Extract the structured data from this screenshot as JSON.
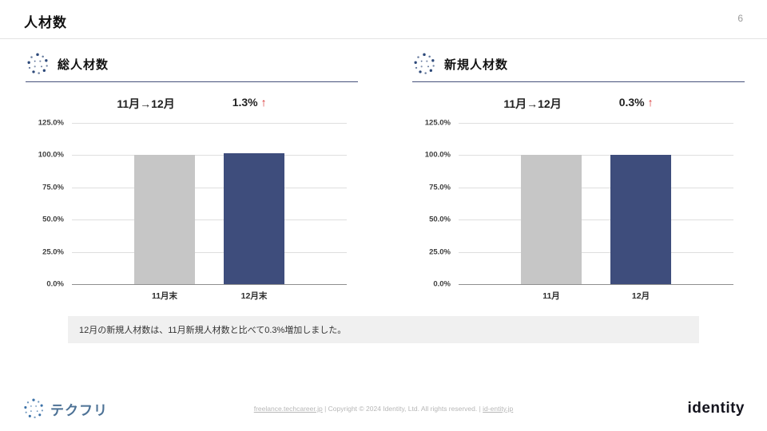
{
  "header": {
    "title": "人材数",
    "page_number": "6"
  },
  "panels": [
    {
      "title": "総人材数",
      "period": "11月→12月",
      "change": "1.3%",
      "arrow": "↑"
    },
    {
      "title": "新規人材数",
      "period": "11月→12月",
      "change": "0.3%",
      "arrow": "↑"
    }
  ],
  "chart_data": [
    {
      "type": "bar",
      "title": "総人材数",
      "categories": [
        "11月末",
        "12月末"
      ],
      "values": [
        100.0,
        101.3
      ],
      "ylim": [
        0,
        125
      ],
      "yticks": [
        "125.0%",
        "100.0%",
        "75.0%",
        "50.0%",
        "25.0%",
        "0.0%"
      ],
      "colors": [
        "#c6c6c6",
        "#3e4d7c"
      ],
      "grid": true,
      "legend": "none"
    },
    {
      "type": "bar",
      "title": "新規人材数",
      "categories": [
        "11月",
        "12月"
      ],
      "values": [
        100.0,
        100.3
      ],
      "ylim": [
        0,
        125
      ],
      "yticks": [
        "125.0%",
        "100.0%",
        "75.0%",
        "50.0%",
        "25.0%",
        "0.0%"
      ],
      "colors": [
        "#c6c6c6",
        "#3e4d7c"
      ],
      "grid": true,
      "legend": "none"
    }
  ],
  "note": {
    "text": "12月の新規人材数は、11月新規人材数と比べて0.3%増加しました。"
  },
  "footer": {
    "logo_text": "テクフリ",
    "link1": "freelance.techcareer.jp",
    "middle": " | Copyright © 2024 Identity, Ltd. All rights reserved. | ",
    "link2": "id-entity.jp",
    "brand": "identity"
  }
}
